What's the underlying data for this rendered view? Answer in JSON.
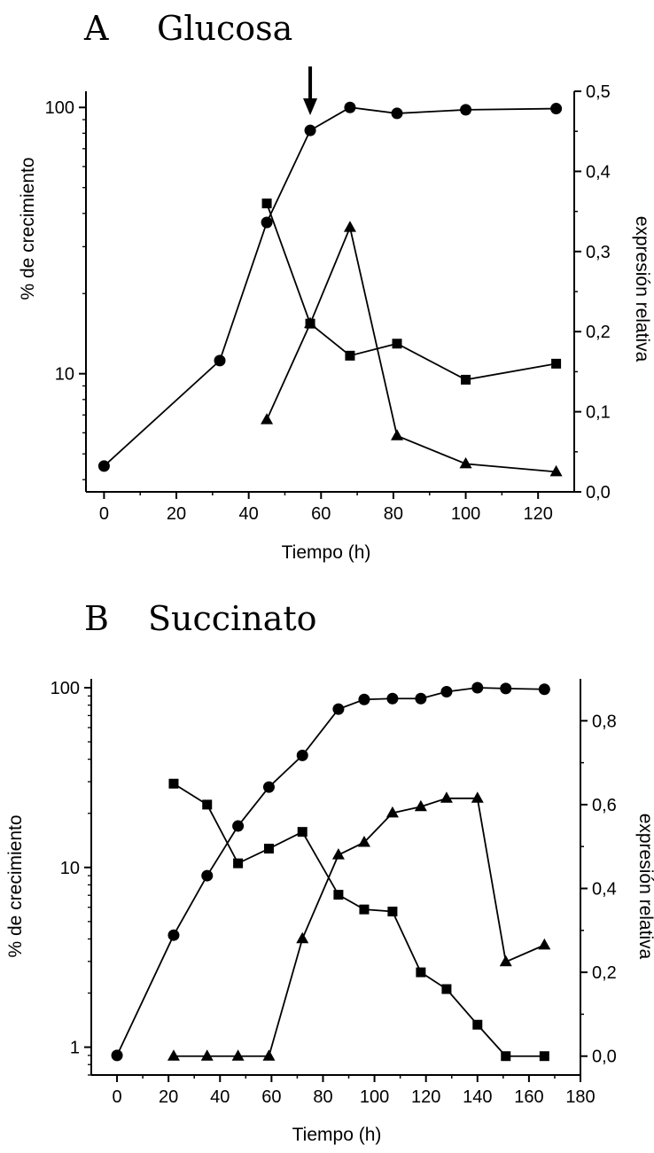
{
  "chart_data": [
    {
      "type": "line",
      "panel_label": "A",
      "title": "Glucosa",
      "xlabel": "Tiempo (h)",
      "ylabel": "% de crecimiento",
      "y2label": "expresión relativa",
      "xlim": [
        -5,
        130
      ],
      "xticks": [
        "0",
        "20",
        "40",
        "60",
        "80",
        "100",
        "120"
      ],
      "ylim": [
        3.6,
        115
      ],
      "yscale": "log",
      "yticks": [
        "10",
        "100"
      ],
      "y2lim": [
        0,
        0.5
      ],
      "y2ticks": [
        "0,0",
        "0,1",
        "0,2",
        "0,3",
        "0,4",
        "0,5"
      ],
      "grid": false,
      "arrow_at_x": 57,
      "series": [
        {
          "axis": "left",
          "marker": "circle",
          "x": [
            0,
            32,
            45,
            57,
            68,
            81,
            100,
            125
          ],
          "y": [
            4.5,
            11.2,
            37,
            82,
            100,
            95,
            98,
            99
          ]
        },
        {
          "axis": "right",
          "marker": "square",
          "x": [
            45,
            57,
            68,
            81,
            100,
            125
          ],
          "y": [
            0.36,
            0.21,
            0.17,
            0.185,
            0.14,
            0.16
          ]
        },
        {
          "axis": "right",
          "marker": "triangle",
          "x": [
            45,
            57,
            68,
            81,
            100,
            125
          ],
          "y": [
            0.09,
            0.21,
            0.33,
            0.07,
            0.035,
            0.025
          ]
        }
      ]
    },
    {
      "type": "line",
      "panel_label": "B",
      "title": "Succinato",
      "xlabel": "Tiempo (h)",
      "ylabel": "% de crecimiento",
      "y2label": "expresión relativa",
      "xlim": [
        -10,
        180
      ],
      "xticks": [
        "0",
        "20",
        "40",
        "60",
        "80",
        "100",
        "120",
        "140",
        "160",
        "180"
      ],
      "ylim": [
        0.7,
        112
      ],
      "yscale": "log",
      "yticks": [
        "1",
        "10",
        "100"
      ],
      "y2lim": [
        -0.045,
        0.9
      ],
      "y2ticks": [
        "0,0",
        "0,2",
        "0,4",
        "0,6",
        "0,8"
      ],
      "grid": false,
      "series": [
        {
          "axis": "left",
          "marker": "circle",
          "x": [
            0,
            22,
            35,
            47,
            59,
            72,
            86,
            96,
            107,
            118,
            128,
            140,
            151,
            166
          ],
          "y": [
            0.9,
            4.2,
            9,
            17,
            28,
            42,
            76,
            86,
            87,
            87,
            95,
            100,
            99,
            98
          ]
        },
        {
          "axis": "right",
          "marker": "square",
          "x": [
            22,
            35,
            47,
            59,
            72,
            86,
            96,
            107,
            118,
            128,
            140,
            151,
            166
          ],
          "y": [
            0.65,
            0.6,
            0.46,
            0.495,
            0.535,
            0.385,
            0.35,
            0.345,
            0.2,
            0.16,
            0.075,
            0.0,
            0.0
          ]
        },
        {
          "axis": "right",
          "marker": "triangle",
          "x": [
            22,
            35,
            47,
            59,
            72,
            86,
            96,
            107,
            118,
            128,
            140,
            151,
            166
          ],
          "y": [
            0.0,
            0.0,
            0.0,
            0.0,
            0.28,
            0.48,
            0.51,
            0.58,
            0.595,
            0.615,
            0.615,
            0.225,
            0.265
          ]
        }
      ]
    }
  ]
}
